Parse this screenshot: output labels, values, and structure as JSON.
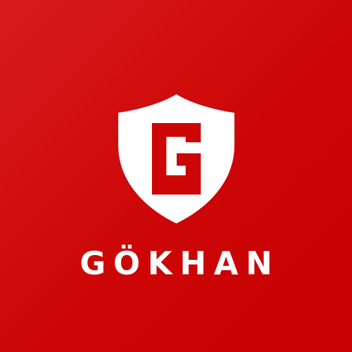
{
  "logo": {
    "monogram": "G",
    "wordmark": "GÖKHAN",
    "icon": "shield-icon"
  },
  "colors": {
    "background": "#cc0606",
    "background_light": "#d81b1b",
    "foreground": "#ffffff"
  }
}
